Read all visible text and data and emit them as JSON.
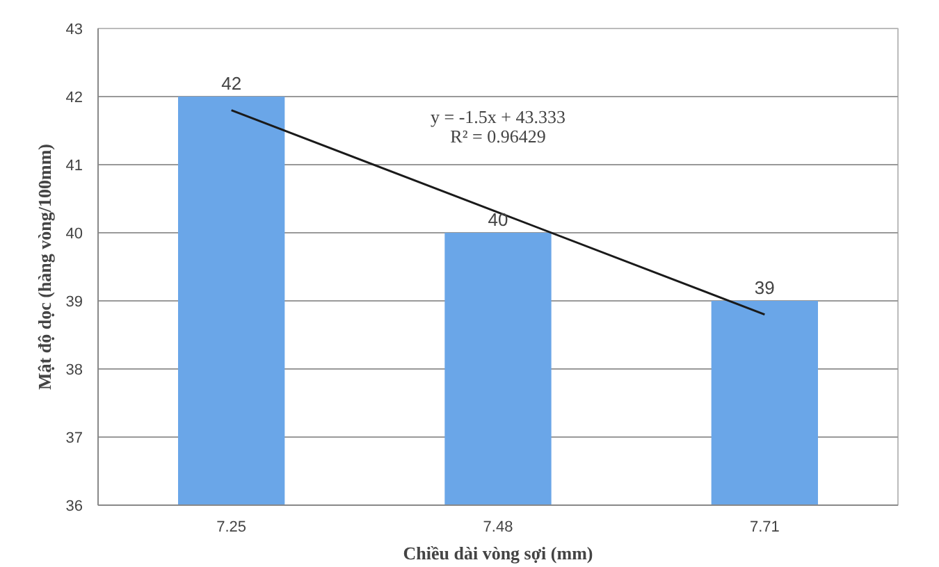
{
  "chart_data": {
    "type": "bar",
    "xlabel": "Chiều dài vòng sợi (mm)",
    "ylabel": "Mật độ dọc (hàng vòng/100mm)",
    "categories": [
      "7.25",
      "7.48",
      "7.71"
    ],
    "series": [
      {
        "color": "#6aa6e8",
        "values": [
          42,
          40,
          39
        ],
        "data_labels": true
      },
      {
        "type": "line",
        "x": [
          "7.25",
          "7.48",
          "7.71"
        ],
        "color": "#1a1a1a",
        "values": [
          41.8,
          40.3,
          38.8
        ]
      }
    ],
    "annotations": [
      "y = -1.5x + 43.333",
      "R² = 0.96429"
    ],
    "ylim": [
      36,
      43
    ],
    "yticks": [
      36,
      37,
      38,
      39,
      40,
      41,
      42,
      43
    ],
    "grid": "y"
  }
}
